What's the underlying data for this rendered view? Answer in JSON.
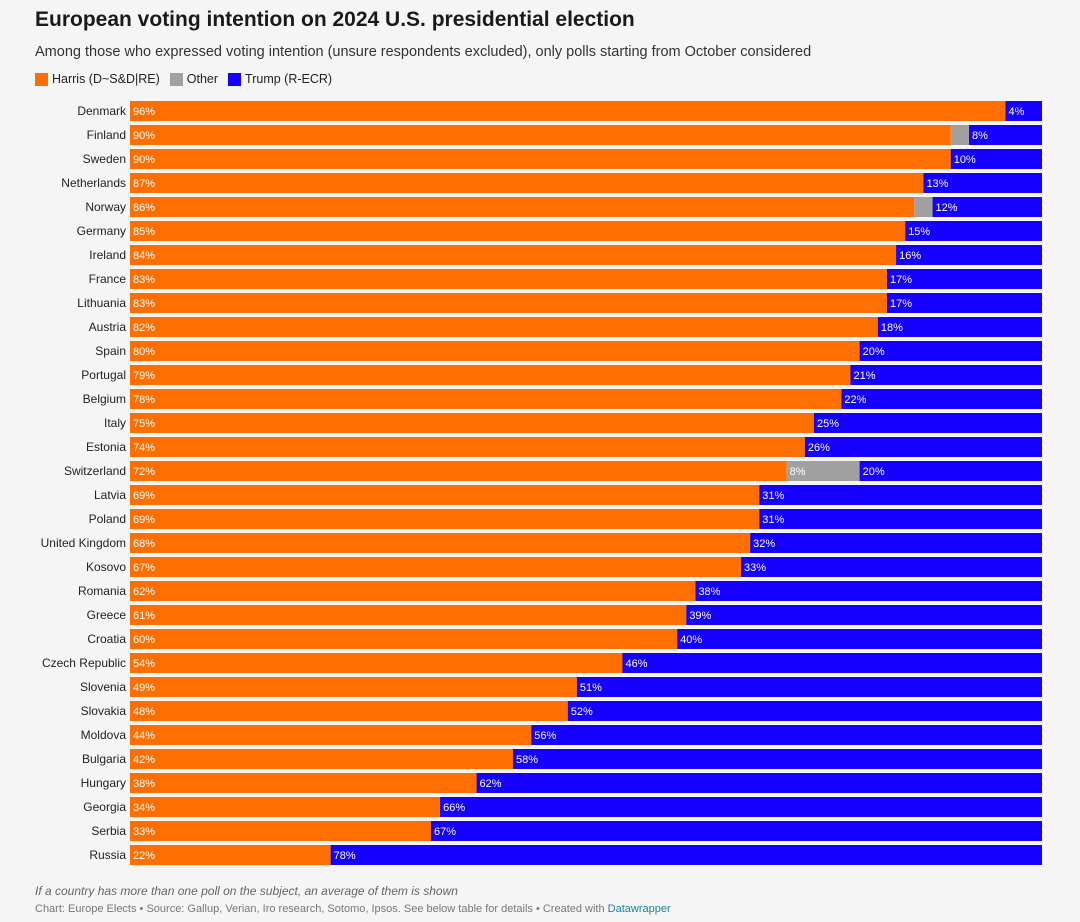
{
  "title": "European voting intention on 2024 U.S. presidential election",
  "subtitle": "Among those who expressed voting intention (unsure respondents excluded), only polls starting from October considered",
  "footnote": "If a country has more than one poll on the subject, an average of them is shown",
  "credit": {
    "text": "Chart: Europe Elects • Source: Gallup, Verian, Iro research, Sotomo, Ipsos. See below table for details • Created with ",
    "link": "Datawrapper"
  },
  "colors": {
    "harris": "#ff6f00",
    "other": "#a0a0a0",
    "trump": "#1500ff"
  },
  "chart_data": {
    "type": "bar",
    "orientation": "horizontal",
    "stacked": true,
    "title": "European voting intention on 2024 U.S. presidential election",
    "legend_position": "top-left",
    "xlim": [
      0,
      100
    ],
    "grid": false,
    "value_suffix": "%",
    "categories": [
      "Denmark",
      "Finland",
      "Sweden",
      "Netherlands",
      "Norway",
      "Germany",
      "Ireland",
      "France",
      "Lithuania",
      "Austria",
      "Spain",
      "Portugal",
      "Belgium",
      "Italy",
      "Estonia",
      "Switzerland",
      "Latvia",
      "Poland",
      "United Kingdom",
      "Kosovo",
      "Romania",
      "Greece",
      "Croatia",
      "Czech Republic",
      "Slovenia",
      "Slovakia",
      "Moldova",
      "Bulgaria",
      "Hungary",
      "Georgia",
      "Serbia",
      "Russia"
    ],
    "series": [
      {
        "name": "Harris (D~S&D|RE)",
        "color": "#ff6f00",
        "values": [
          96,
          90,
          90,
          87,
          86,
          85,
          84,
          83,
          83,
          82,
          80,
          79,
          78,
          75,
          74,
          72,
          69,
          69,
          68,
          67,
          62,
          61,
          60,
          54,
          49,
          48,
          44,
          42,
          38,
          34,
          33,
          22
        ],
        "labels": [
          true,
          true,
          true,
          true,
          true,
          true,
          true,
          true,
          true,
          true,
          true,
          true,
          true,
          true,
          true,
          true,
          true,
          true,
          true,
          true,
          true,
          true,
          true,
          true,
          true,
          true,
          true,
          true,
          true,
          true,
          true,
          true
        ]
      },
      {
        "name": "Other",
        "color": "#a0a0a0",
        "values": [
          0,
          2,
          0,
          0,
          2,
          0,
          0,
          0,
          0,
          0,
          0,
          0,
          0,
          0,
          0,
          8,
          0,
          0,
          0,
          0,
          0,
          0,
          0,
          0,
          0,
          0,
          0,
          0,
          0,
          0,
          0,
          0
        ],
        "labels": [
          false,
          false,
          false,
          false,
          false,
          false,
          false,
          false,
          false,
          false,
          false,
          false,
          false,
          false,
          false,
          true,
          false,
          false,
          false,
          false,
          false,
          false,
          false,
          false,
          false,
          false,
          false,
          false,
          false,
          false,
          false,
          false
        ]
      },
      {
        "name": "Trump (R-ECR)",
        "color": "#1500ff",
        "values": [
          4,
          8,
          10,
          13,
          12,
          15,
          16,
          17,
          17,
          18,
          20,
          21,
          22,
          25,
          26,
          20,
          31,
          31,
          32,
          33,
          38,
          39,
          40,
          46,
          51,
          52,
          56,
          58,
          62,
          66,
          67,
          78
        ],
        "labels": [
          true,
          true,
          true,
          true,
          true,
          true,
          true,
          true,
          true,
          true,
          true,
          true,
          true,
          true,
          true,
          true,
          true,
          true,
          true,
          true,
          true,
          true,
          true,
          true,
          true,
          true,
          true,
          true,
          true,
          true,
          true,
          true
        ]
      }
    ]
  }
}
